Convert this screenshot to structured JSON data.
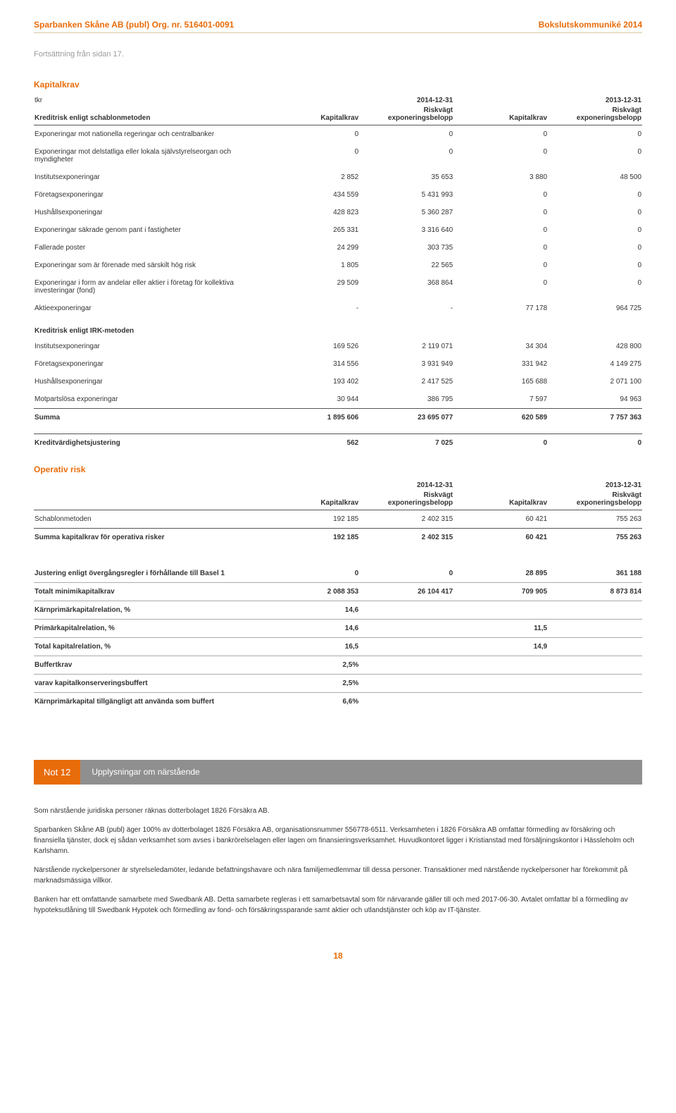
{
  "header": {
    "left": "Sparbanken Skåne AB (publ) Org. nr. 516401-0091",
    "right": "Bokslutskommuniké 2014"
  },
  "contNote": "Fortsättning från sidan 17.",
  "kapitalkrav": {
    "title": "Kapitalkrav",
    "tkr": "tkr",
    "y1": "2014-12-31",
    "y2": "2013-12-31",
    "headLabel": "Kreditrisk enligt schablonmetoden",
    "col1": "Kapitalkrav",
    "col2": "Riskvägt exponeringsbelopp",
    "col3": "Kapitalkrav",
    "col4": "Riskvägt exponeringsbelopp",
    "rows": [
      {
        "label": "Exponeringar mot nationella regeringar och centralbanker",
        "c1": "0",
        "c2": "0",
        "c3": "0",
        "c4": "0"
      },
      {
        "label": "Exponeringar mot delstatliga eller lokala självstyrelseorgan och myndigheter",
        "c1": "0",
        "c2": "0",
        "c3": "0",
        "c4": "0"
      },
      {
        "label": "Institutsexponeringar",
        "c1": "2 852",
        "c2": "35 653",
        "c3": "3 880",
        "c4": "48 500"
      },
      {
        "label": "Företagsexponeringar",
        "c1": "434 559",
        "c2": "5 431 993",
        "c3": "0",
        "c4": "0"
      },
      {
        "label": "Hushållsexponeringar",
        "c1": "428 823",
        "c2": "5 360 287",
        "c3": "0",
        "c4": "0"
      },
      {
        "label": "Exponeringar säkrade genom pant i fastigheter",
        "c1": "265 331",
        "c2": "3 316 640",
        "c3": "0",
        "c4": "0"
      },
      {
        "label": "Fallerade poster",
        "c1": "24 299",
        "c2": "303 735",
        "c3": "0",
        "c4": "0"
      },
      {
        "label": "Exponeringar som är förenade med särskilt hög risk",
        "c1": "1 805",
        "c2": "22 565",
        "c3": "0",
        "c4": "0"
      },
      {
        "label": "Exponeringar i form av andelar eller aktier i företag för kollektiva investeringar (fond)",
        "c1": "29 509",
        "c2": "368 864",
        "c3": "0",
        "c4": "0"
      },
      {
        "label": "Aktieexponeringar",
        "c1": "-",
        "c2": "-",
        "c3": "77 178",
        "c4": "964 725"
      }
    ],
    "irkTitle": "Kreditrisk enligt IRK-metoden",
    "irkRows": [
      {
        "label": "Institutsexponeringar",
        "c1": "169 526",
        "c2": "2 119 071",
        "c3": "34 304",
        "c4": "428 800"
      },
      {
        "label": "Företagsexponeringar",
        "c1": "314 556",
        "c2": "3 931 949",
        "c3": "331 942",
        "c4": "4 149 275"
      },
      {
        "label": "Hushållsexponeringar",
        "c1": "193 402",
        "c2": "2 417 525",
        "c3": "165 688",
        "c4": "2 071 100"
      },
      {
        "label": "Motpartslösa exponeringar",
        "c1": "30 944",
        "c2": "386 795",
        "c3": "7 597",
        "c4": "94 963"
      }
    ],
    "summa": {
      "label": "Summa",
      "c1": "1 895 606",
      "c2": "23 695 077",
      "c3": "620 589",
      "c4": "7 757 363"
    },
    "kredit": {
      "label": "Kreditvärdighetsjustering",
      "c1": "562",
      "c2": "7 025",
      "c3": "0",
      "c4": "0"
    }
  },
  "operativ": {
    "title": "Operativ risk",
    "y1": "2014-12-31",
    "y2": "2013-12-31",
    "col1": "Kapitalkrav",
    "col2": "Riskvägt exponeringsbelopp",
    "col3": "Kapitalkrav",
    "col4": "Riskvägt exponeringsbelopp",
    "row": {
      "label": "Schablonmetoden",
      "c1": "192 185",
      "c2": "2 402 315",
      "c3": "60 421",
      "c4": "755 263"
    },
    "summa": {
      "label": "Summa kapitalkrav för operativa risker",
      "c1": "192 185",
      "c2": "2 402 315",
      "c3": "60 421",
      "c4": "755 263"
    }
  },
  "lower": {
    "rows": [
      {
        "label": "Justering enligt övergångsregler i förhållande till Basel 1",
        "c1": "0",
        "c2": "0",
        "c3": "28 895",
        "c4": "361 188"
      },
      {
        "label": "Totalt minimikapitalkrav",
        "c1": "2 088 353",
        "c2": "26 104 417",
        "c3": "709 905",
        "c4": "8 873 814"
      },
      {
        "label": "Kärnprimärkapitalrelation, %",
        "c1": "14,6",
        "c2": "",
        "c3": "",
        "c4": ""
      },
      {
        "label": "Primärkapitalrelation, %",
        "c1": "14,6",
        "c2": "",
        "c3": "11,5",
        "c4": ""
      },
      {
        "label": "Total kapitalrelation, %",
        "c1": "16,5",
        "c2": "",
        "c3": "14,9",
        "c4": ""
      },
      {
        "label": "Buffertkrav",
        "c1": "2,5%",
        "c2": "",
        "c3": "",
        "c4": ""
      },
      {
        "label": "varav kapitalkonserveringsbuffert",
        "c1": "2,5%",
        "c2": "",
        "c3": "",
        "c4": ""
      },
      {
        "label": "Kärnprimärkapital tillgängligt att använda som buffert",
        "c1": "6,6%",
        "c2": "",
        "c3": "",
        "c4": ""
      }
    ]
  },
  "note12": {
    "num": "Not 12",
    "title": "Upplysningar om närstående",
    "paras": [
      "Som närstående juridiska personer räknas dotterbolaget 1826 Försäkra AB.",
      "Sparbanken Skåne AB (publ) äger 100% av dotterbolaget 1826 Försäkra AB, organisationsnummer 556778-6511. Verksamheten i 1826 Försäkra AB omfattar förmedling av försäkring och finansiella tjänster, dock ej sådan verksamhet som avses i bankrörelselagen eller lagen om finansieringsverksamhet. Huvudkontoret ligger i Kristianstad med försäljningskontor i Hässleholm och Karlshamn.",
      "Närstående nyckelpersoner är styrelseledamöter, ledande befattningshavare och nära familjemedlemmar till dessa personer. Transaktioner med närstående nyckelpersoner har förekommit på marknadsmässiga villkor.",
      "Banken har ett omfattande samarbete med Swedbank AB. Detta samarbete regleras i ett samarbetsavtal som för närvarande gäller till och med 2017-06-30. Avtalet omfattar bl a förmedling av hypoteksutlåning till Swedbank Hypotek och förmedling av fond- och försäkringssparande samt aktier och utlandstjänster och köp av IT-tjänster."
    ]
  },
  "pageNum": "18"
}
